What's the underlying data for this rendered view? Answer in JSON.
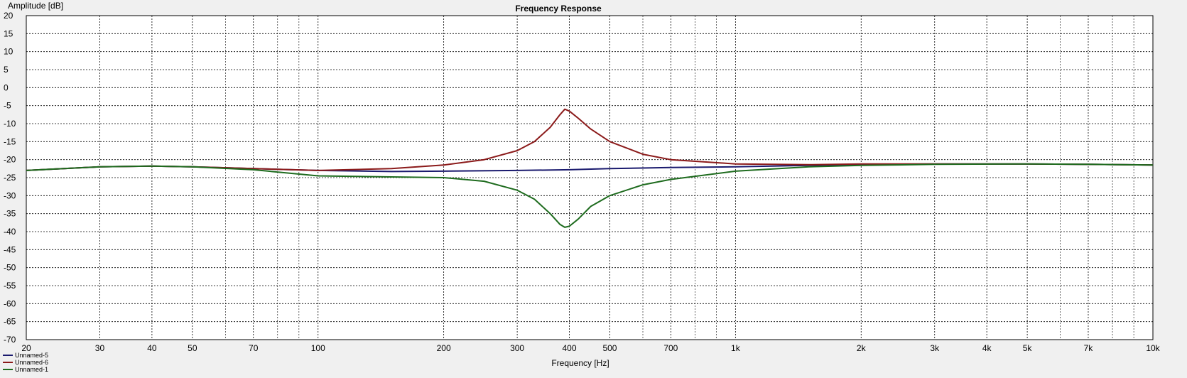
{
  "chart_data": {
    "type": "line",
    "title": "Frequency Response",
    "xlabel": "Frequency [Hz]",
    "ylabel": "Amplitude [dB]",
    "xscale": "log",
    "xlim": [
      20,
      10000
    ],
    "ylim": [
      -70,
      20
    ],
    "grid": true,
    "legend_position": "bottom-left",
    "y_ticks": [
      20,
      15,
      10,
      5,
      0,
      -5,
      -10,
      -15,
      -20,
      -25,
      -30,
      -35,
      -40,
      -45,
      -50,
      -55,
      -60,
      -65,
      -70
    ],
    "y_tick_labels": [
      "20",
      "15",
      "10",
      "5",
      "0",
      "-5",
      "-10",
      "-15",
      "-20",
      "-25",
      "-30",
      "-35",
      "-40",
      "-45",
      "-50",
      "-55",
      "-60",
      "-65",
      "-70"
    ],
    "x_ticks": [
      20,
      30,
      40,
      50,
      70,
      100,
      200,
      300,
      400,
      500,
      700,
      1000,
      2000,
      3000,
      4000,
      5000,
      7000,
      10000
    ],
    "x_tick_labels": [
      "20",
      "30",
      "40",
      "50",
      "70",
      "100",
      "200",
      "300",
      "400",
      "500",
      "700",
      "1k",
      "2k",
      "3k",
      "4k",
      "5k",
      "7k",
      "10k"
    ],
    "x_minor_grid": [
      60,
      80,
      90,
      600,
      800,
      900,
      6000,
      8000,
      9000
    ],
    "series": [
      {
        "name": "Unnamed-5",
        "color": "#1a1a6e",
        "x": [
          20,
          30,
          40,
          50,
          70,
          100,
          150,
          200,
          300,
          400,
          500,
          700,
          1000,
          1500,
          2000,
          3000,
          5000,
          7000,
          10000
        ],
        "y": [
          -23,
          -22,
          -21.8,
          -22,
          -22.5,
          -23,
          -23.3,
          -23.2,
          -23,
          -22.8,
          -22.5,
          -22.2,
          -22,
          -21.6,
          -21.3,
          -21.2,
          -21.2,
          -21.3,
          -21.5
        ]
      },
      {
        "name": "Unnamed-6",
        "color": "#8b1a1a",
        "x": [
          20,
          30,
          40,
          50,
          70,
          100,
          150,
          200,
          250,
          300,
          330,
          360,
          380,
          390,
          400,
          420,
          450,
          500,
          600,
          700,
          1000,
          1500,
          2000,
          3000,
          5000,
          7000,
          10000
        ],
        "y": [
          -23,
          -22,
          -21.8,
          -22,
          -22.5,
          -23,
          -22.5,
          -21.5,
          -20,
          -17.5,
          -15,
          -11,
          -7.5,
          -6,
          -6.5,
          -8.5,
          -11.5,
          -15,
          -18.5,
          -20,
          -21.2,
          -21.4,
          -21.2,
          -21.2,
          -21.2,
          -21.3,
          -21.5
        ]
      },
      {
        "name": "Unnamed-1",
        "color": "#1e6b1e",
        "x": [
          20,
          30,
          40,
          50,
          70,
          100,
          150,
          200,
          250,
          300,
          330,
          360,
          380,
          390,
          400,
          420,
          450,
          500,
          600,
          700,
          1000,
          1500,
          2000,
          3000,
          5000,
          7000,
          10000
        ],
        "y": [
          -23,
          -22,
          -21.8,
          -22,
          -22.8,
          -24.5,
          -24.8,
          -25,
          -26,
          -28.5,
          -31,
          -35,
          -38,
          -38.8,
          -38.5,
          -36.5,
          -33,
          -30,
          -27,
          -25.5,
          -23.2,
          -22,
          -21.6,
          -21.3,
          -21.2,
          -21.3,
          -21.5
        ]
      }
    ]
  }
}
